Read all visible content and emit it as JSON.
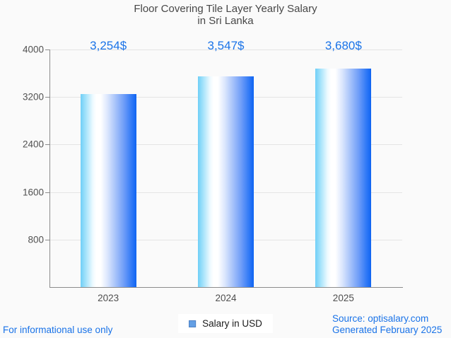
{
  "chart_data": {
    "type": "bar",
    "title": "Floor Covering Tile Layer Yearly Salary in Sri Lanka",
    "title_lines": [
      "Floor Covering Tile Layer Yearly Salary",
      "in Sri Lanka"
    ],
    "categories": [
      "2023",
      "2024",
      "2025"
    ],
    "series": [
      {
        "name": "Salary in USD",
        "values": [
          3254,
          3547,
          3680
        ]
      }
    ],
    "value_labels": [
      "3,254$",
      "3,547$",
      "3,680$"
    ],
    "xlabel": "",
    "ylabel": "",
    "ylim": [
      0,
      4000
    ],
    "yticks": [
      800,
      1600,
      2400,
      3200,
      4000
    ],
    "grid": true,
    "legend_position": "bottom",
    "colors": {
      "background": "#fafafa",
      "gridline": "#e4e4e4",
      "axis": "#8c8c8c",
      "tick_text": "#515151",
      "title_text": "#474747",
      "accent_blue": "#1a73e8",
      "bar_gradient_left": "#6fcff7",
      "bar_gradient_mid": "#ffffff",
      "bar_gradient_right": "#0f64f2",
      "legend_swatch": "#639fe5",
      "legend_swatch_border": "#4d80c4"
    }
  },
  "legend": {
    "label": "Salary in USD"
  },
  "footer": {
    "left_note": "For informational use only",
    "source": "Source: optisalary.com",
    "generated": "Generated February 2025"
  }
}
